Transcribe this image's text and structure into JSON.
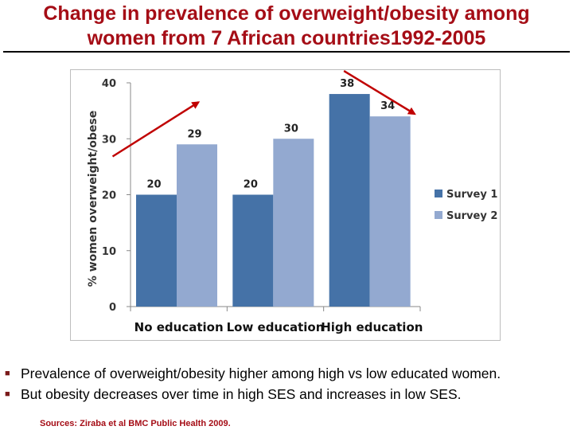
{
  "title": {
    "line1": "Change in prevalence of overweight/obesity among",
    "line2": "women from 7 African countries1992-2005"
  },
  "colors": {
    "title": "#a50d16",
    "survey1": "#4572a7",
    "survey2": "#93a9d0",
    "arrow": "#c00000"
  },
  "chart_data": {
    "type": "bar",
    "title": "",
    "xlabel": "",
    "ylabel": "% women overweight/obese",
    "ylim": [
      0,
      40
    ],
    "yticks": [
      0,
      10,
      20,
      30,
      40
    ],
    "grid": false,
    "legend_position": "right",
    "categories": [
      "No education",
      "Low education",
      "High education"
    ],
    "series": [
      {
        "name": "Survey 1",
        "values": [
          20,
          20,
          38
        ]
      },
      {
        "name": "Survey 2",
        "values": [
          29,
          30,
          34
        ]
      }
    ],
    "annotations": [
      {
        "type": "arrow",
        "direction": "up",
        "category": "No education"
      },
      {
        "type": "arrow",
        "direction": "down",
        "category": "High education"
      }
    ]
  },
  "bullets": [
    "Prevalence of overweight/obesity higher among high vs low educated women.",
    "But obesity decreases over time in high SES  and increases in low SES."
  ],
  "bullet_icon": "square-bullet-icon",
  "source": "Sources: Ziraba et al BMC Public Health 2009."
}
